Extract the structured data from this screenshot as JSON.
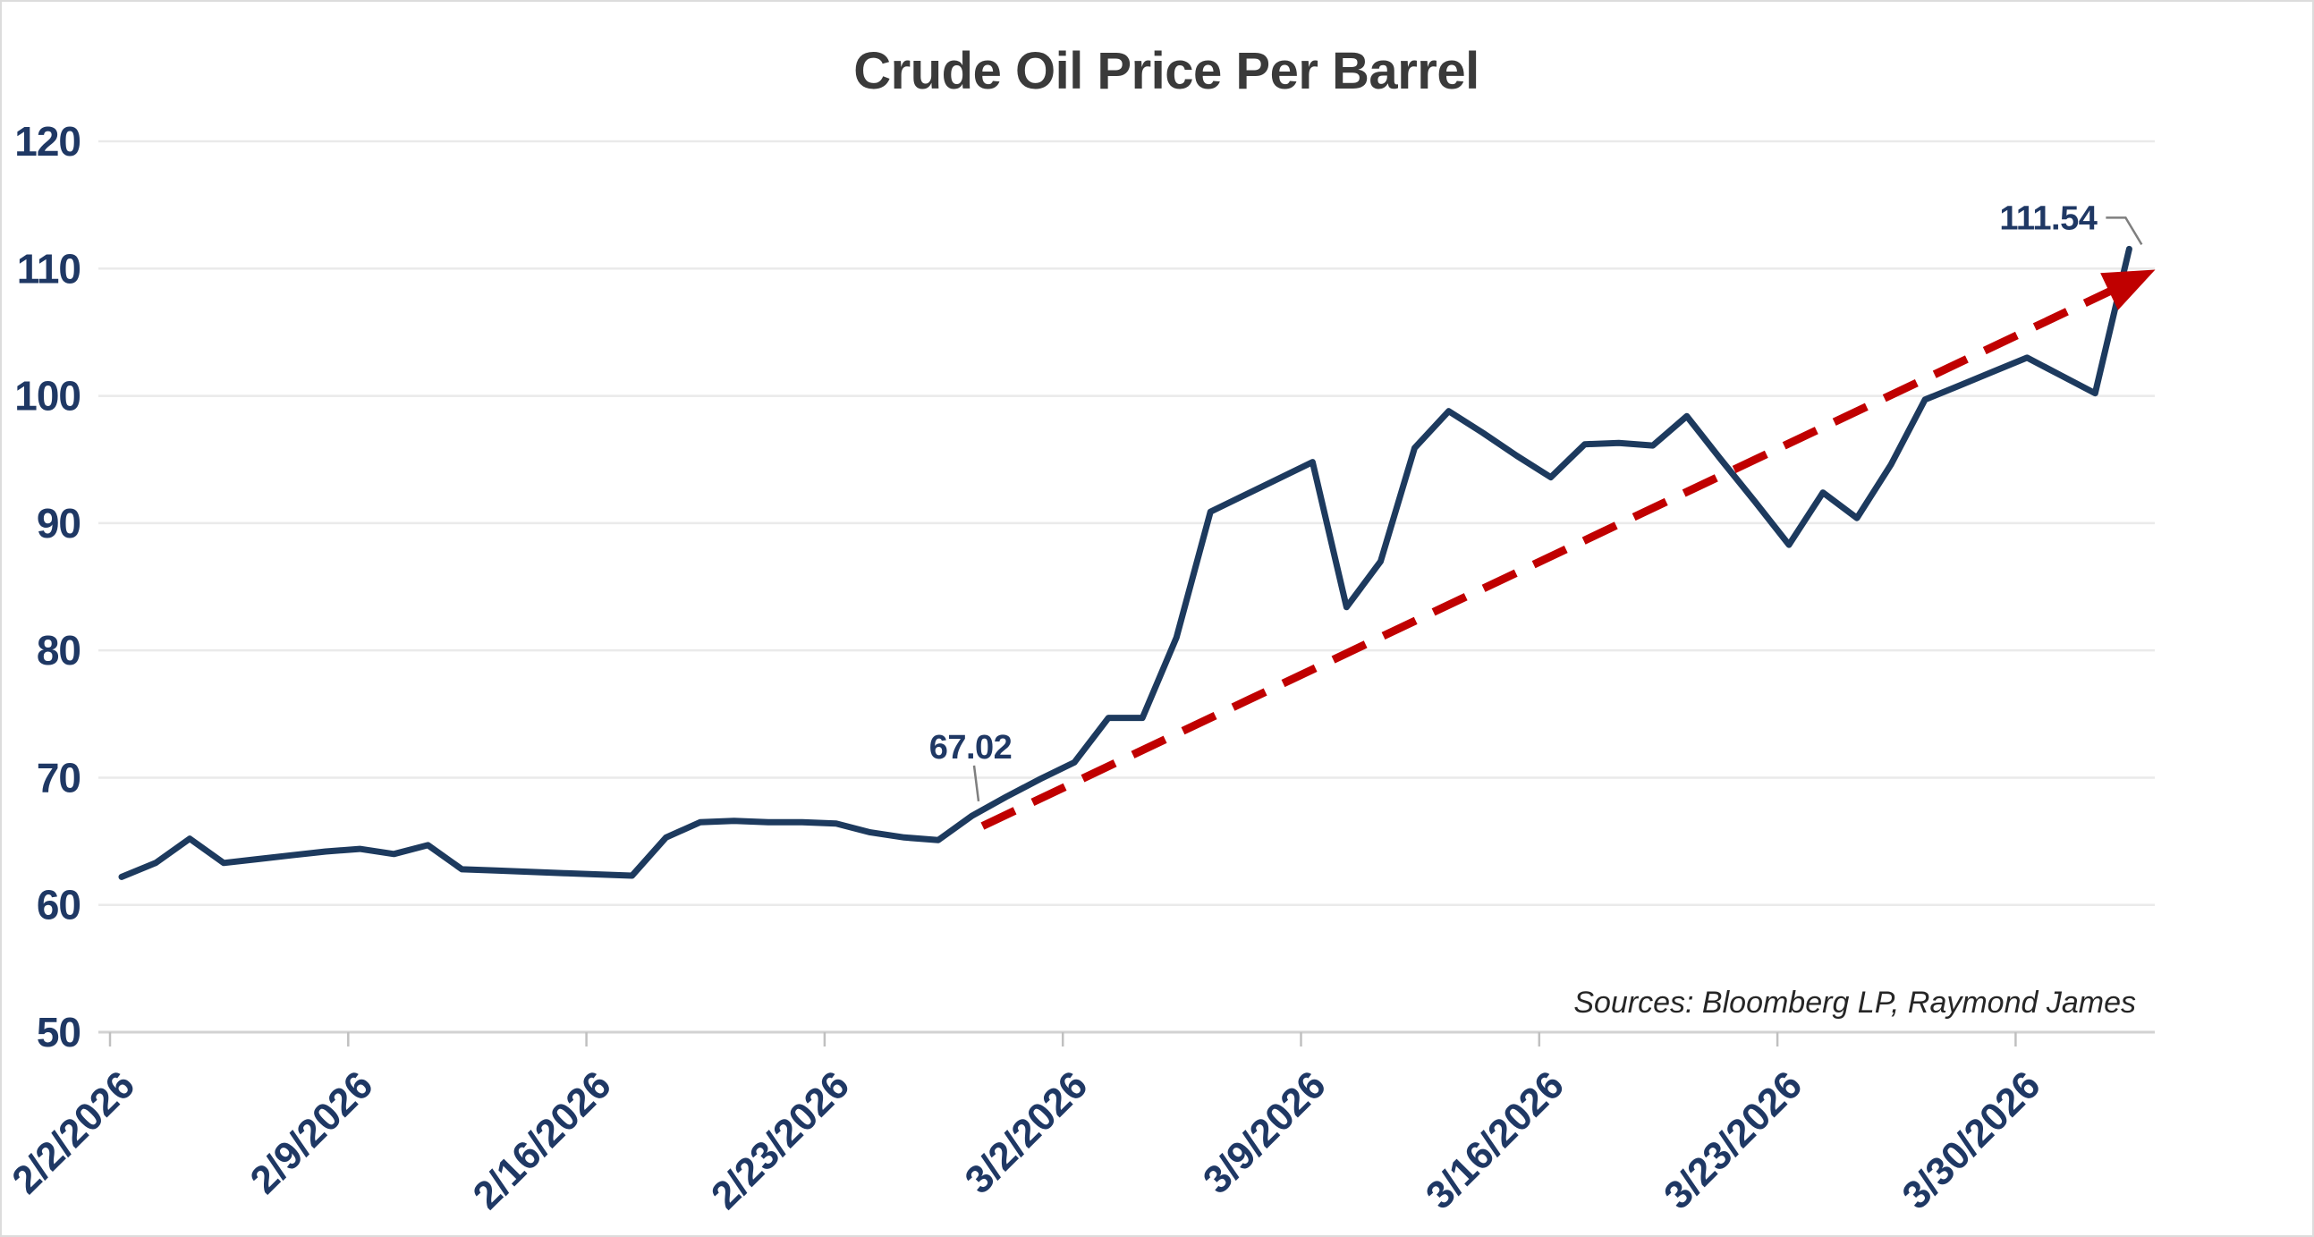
{
  "title": "Crude Oil Price Per Barrel",
  "source_note": "Sources: Bloomberg LP, Raymond James",
  "colors": {
    "line": "#1d3a5e",
    "trend": "#c00000",
    "axis_text": "#1f3864",
    "title_text": "#3a3a3a",
    "source_text": "#262626",
    "gridline": "#eaeaea",
    "axis_line": "#d2d2d2",
    "tick": "#c0c0c0",
    "leader": "#7f7f7f",
    "background": "#ffffff",
    "border": "#dcdcdc"
  },
  "chart_data": {
    "type": "line",
    "title": "Crude Oil Price Per Barrel",
    "ylim": [
      50,
      120
    ],
    "y_ticks": [
      120,
      110,
      100,
      90,
      80,
      70,
      60,
      50
    ],
    "grid": "horizontal",
    "legend": "none",
    "x_tick_labels": [
      "2/2/2026",
      "2/9/2026",
      "2/16/2026",
      "2/23/2026",
      "3/2/2026",
      "3/9/2026",
      "3/16/2026",
      "3/23/2026",
      "3/30/2026"
    ],
    "x_tick_every_days": 7,
    "x": [
      "2/2/2026",
      "2/3/2026",
      "2/4/2026",
      "2/5/2026",
      "2/6/2026",
      "2/7/2026",
      "2/8/2026",
      "2/9/2026",
      "2/10/2026",
      "2/11/2026",
      "2/12/2026",
      "2/13/2026",
      "2/14/2026",
      "2/15/2026",
      "2/16/2026",
      "2/17/2026",
      "2/18/2026",
      "2/19/2026",
      "2/20/2026",
      "2/21/2026",
      "2/22/2026",
      "2/23/2026",
      "2/24/2026",
      "2/25/2026",
      "2/26/2026",
      "2/27/2026",
      "2/28/2026",
      "3/1/2026",
      "3/2/2026",
      "3/3/2026",
      "3/4/2026",
      "3/5/2026",
      "3/6/2026",
      "3/7/2026",
      "3/8/2026",
      "3/9/2026",
      "3/10/2026",
      "3/11/2026",
      "3/12/2026",
      "3/13/2026",
      "3/14/2026",
      "3/15/2026",
      "3/16/2026",
      "3/17/2026",
      "3/18/2026",
      "3/19/2026",
      "3/20/2026",
      "3/21/2026",
      "3/22/2026",
      "3/23/2026",
      "3/24/2026",
      "3/25/2026",
      "3/26/2026",
      "3/27/2026",
      "3/28/2026",
      "3/29/2026",
      "3/30/2026",
      "3/31/2026",
      "4/1/2026",
      "4/2/2026"
    ],
    "series": [
      {
        "name": "Crude Oil Price Per Barrel (USD)",
        "values": [
          62.2,
          63.3,
          65.2,
          63.3,
          63.6,
          63.9,
          64.2,
          64.4,
          64.0,
          64.7,
          62.8,
          62.7,
          62.6,
          62.5,
          62.4,
          62.3,
          65.3,
          66.5,
          66.6,
          66.5,
          66.5,
          66.4,
          65.7,
          65.3,
          65.1,
          67.02,
          68.5,
          69.9,
          71.2,
          74.7,
          74.7,
          81.0,
          90.9,
          92.2,
          93.5,
          94.8,
          83.4,
          87.0,
          95.9,
          98.8,
          97.1,
          95.3,
          93.6,
          96.2,
          96.3,
          96.1,
          98.4,
          95.0,
          91.7,
          88.3,
          92.4,
          90.4,
          94.6,
          99.7,
          100.8,
          101.9,
          103.0,
          101.6,
          100.2,
          111.54
        ]
      }
    ],
    "annotations": [
      {
        "label": "67.02",
        "date": "2/27/2026",
        "index": 25,
        "value": 67.02,
        "placement": "above"
      },
      {
        "label": "111.54",
        "date": "4/2/2026",
        "index": 59,
        "value": 111.54,
        "placement": "left"
      }
    ],
    "trend_arrow": {
      "style": "dashed",
      "color": "#c00000",
      "from": {
        "index": 25.3,
        "value": 66.2
      },
      "to": {
        "index": 59.6,
        "value": 109.7
      }
    }
  }
}
